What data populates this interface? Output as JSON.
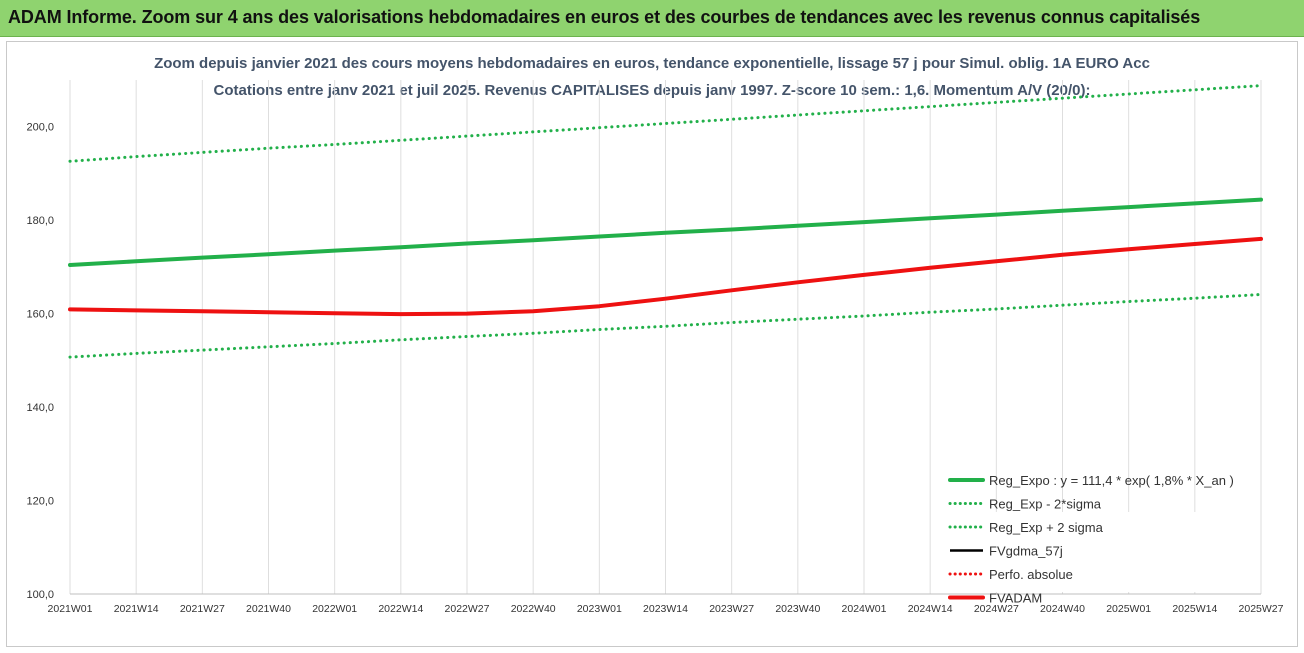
{
  "banner": {
    "title": "ADAM Informe. Zoom sur 4 ans des valorisations hebdomadaires en euros et des courbes de tendances avec les revenus connus capitalisés"
  },
  "chart_data": {
    "type": "line",
    "title": "Zoom depuis janvier 2021 des cours moyens hebdomadaires en euros, tendance exponentielle, lissage 57 j pour Simul. oblig. 1A EURO Acc",
    "subtitle": "Cotations entre janv 2021 et juil 2025. Revenus CAPITALISES depuis janv 1997. Z-score 10 sem.: 1,6. Momentum A/V (20/0):",
    "ylim": [
      100,
      210
    ],
    "y_ticks": [
      "100,0",
      "120,0",
      "140,0",
      "160,0",
      "180,0",
      "200,0"
    ],
    "x_ticks": [
      "2021W01",
      "2021W14",
      "2021W27",
      "2021W40",
      "2022W01",
      "2022W14",
      "2022W27",
      "2022W40",
      "2023W01",
      "2023W14",
      "2023W27",
      "2023W40",
      "2024W01",
      "2024W14",
      "2024W27",
      "2024W40",
      "2025W01",
      "2025W14",
      "2025W27"
    ],
    "grid": "vertical",
    "legend_position": "bottom-right",
    "colors": {
      "green": "#22b04a",
      "red": "#ee1111",
      "black": "#000000"
    },
    "series": [
      {
        "name": "Reg_Expo : y = 111,4 * exp( 1,8% *  X_an )",
        "style": "solid-thick",
        "color": "#22b04a",
        "values": [
          170.4,
          171.2,
          172.0,
          172.7,
          173.5,
          174.2,
          175.0,
          175.7,
          176.5,
          177.3,
          178.0,
          178.8,
          179.6,
          180.4,
          181.2,
          182.0,
          182.8,
          183.6,
          184.4
        ]
      },
      {
        "name": "Reg_Exp - 2*sigma",
        "style": "dotted",
        "color": "#22b04a",
        "values": [
          150.7,
          151.5,
          152.2,
          152.9,
          153.6,
          154.4,
          155.1,
          155.8,
          156.6,
          157.3,
          158.1,
          158.8,
          159.5,
          160.3,
          161.0,
          161.8,
          162.6,
          163.3,
          164.1
        ]
      },
      {
        "name": "Reg_Exp + 2 sigma",
        "style": "dotted",
        "color": "#22b04a",
        "values": [
          192.6,
          193.6,
          194.5,
          195.4,
          196.2,
          197.1,
          198.0,
          198.9,
          199.8,
          200.7,
          201.6,
          202.5,
          203.4,
          204.3,
          205.2,
          206.1,
          207.0,
          207.9,
          208.8
        ]
      },
      {
        "name": "FVgdma_57j",
        "style": "solid",
        "color": "#000000",
        "values": []
      },
      {
        "name": "Perfo. absolue",
        "style": "dotted",
        "color": "#ee1111",
        "values": []
      },
      {
        "name": "FVADAM",
        "style": "solid-thick",
        "color": "#ee1111",
        "values": [
          160.9,
          160.7,
          160.5,
          160.3,
          160.1,
          159.9,
          160.0,
          160.5,
          161.6,
          163.2,
          165.0,
          166.7,
          168.3,
          169.8,
          171.2,
          172.6,
          173.8,
          174.9,
          176.0
        ]
      }
    ]
  }
}
